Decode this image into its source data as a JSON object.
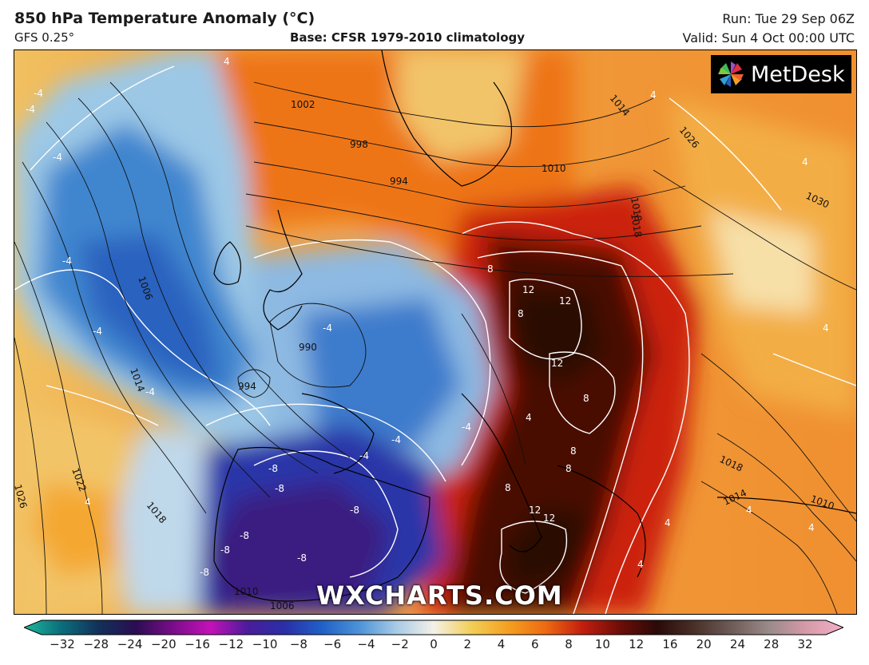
{
  "header": {
    "title": "850 hPa Temperature Anomaly (°C)",
    "model": "GFS 0.25°",
    "base": "Base: CFSR 1979-2010 climatology",
    "run": "Run: Tue 29 Sep 06Z",
    "valid": "Valid: Sun 4 Oct 00:00 UTC"
  },
  "logo": {
    "text": "MetDesk",
    "icon": "pinwheel-logo-icon"
  },
  "watermark": "WXCHARTS.COM",
  "map": {
    "pressure_labels": [
      "1002",
      "998",
      "994",
      "1006",
      "1010",
      "990",
      "994",
      "1014",
      "1022",
      "1026",
      "1018",
      "1010",
      "1006",
      "1014",
      "1026",
      "1030",
      "1018",
      "1018",
      "1014",
      "1010",
      "1018"
    ],
    "anomaly_labels": [
      "-4",
      "-4",
      "-4",
      "-4",
      "-4",
      "-4",
      "4",
      "-4",
      "-4",
      "-4",
      "-4",
      "-8",
      "-8",
      "-8",
      "-8",
      "-8",
      "-8",
      "-8",
      "4",
      "8",
      "12",
      "12",
      "8",
      "12",
      "8",
      "8",
      "8",
      "8",
      "12",
      "12",
      "4",
      "4",
      "4",
      "4",
      "4",
      "4",
      "4",
      "4"
    ]
  },
  "colorbar": {
    "ticks": [
      "−32",
      "−28",
      "−24",
      "−20",
      "−16",
      "−12",
      "−10",
      "−8",
      "−6",
      "−4",
      "−2",
      "0",
      "2",
      "4",
      "6",
      "8",
      "10",
      "12",
      "16",
      "20",
      "24",
      "28",
      "32"
    ],
    "colors": [
      "#1db79a",
      "#0b6e7c",
      "#12315a",
      "#2a0d52",
      "#7a0d8a",
      "#c411b8",
      "#4a1c9c",
      "#2a2fa8",
      "#2060c8",
      "#4c93d8",
      "#a7cbe6",
      "#f4f1e8",
      "#f2cf58",
      "#f4a020",
      "#ee6a12",
      "#c21e0e",
      "#6e0d08",
      "#2a0a08",
      "#4a3028",
      "#6e5c58",
      "#9a8a8a",
      "#d69aa8",
      "#f2b0c8"
    ]
  }
}
